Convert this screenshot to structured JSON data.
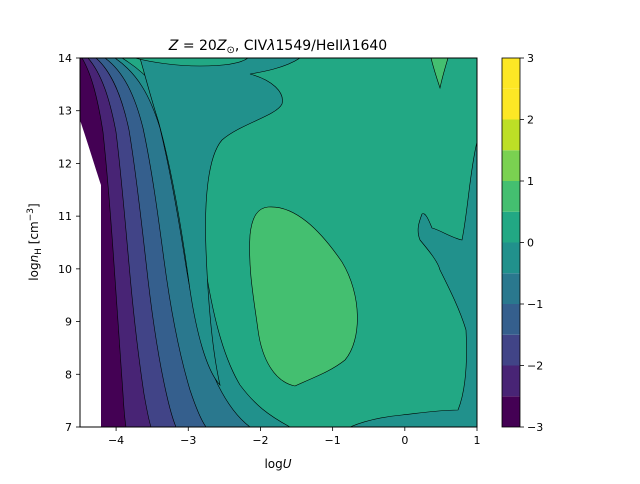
{
  "chart_data": {
    "type": "contourf",
    "title": "Z = 20Z⊙, CIVλ1549/HeIIλ1640",
    "title_parts": {
      "z": "Z",
      "eq": " = 20",
      "zsun": "Z",
      "sun": "⊙",
      "rest": ", CIV",
      "lam1": "λ",
      "n1": "1549/HeII",
      "lam2": "λ",
      "n2": "1640"
    },
    "xlabel": "logU",
    "xlabel_parts": {
      "log": "log",
      "var": "U"
    },
    "ylabel": "logn_H [cm^-3]",
    "ylabel_parts": {
      "log": "log",
      "var": "n",
      "sub": "H",
      "unit": " [cm",
      "sup": "−3",
      "close": "]"
    },
    "xlim": [
      -4.5,
      1
    ],
    "ylim": [
      7,
      14
    ],
    "x_ticks": [
      -4,
      -3,
      -2,
      -1,
      0,
      1
    ],
    "x_tick_labels": [
      "−4",
      "−3",
      "−2",
      "−1",
      "0",
      "1"
    ],
    "y_ticks": [
      7,
      8,
      9,
      10,
      11,
      12,
      13,
      14
    ],
    "y_tick_labels": [
      "7",
      "8",
      "9",
      "10",
      "11",
      "12",
      "13",
      "14"
    ],
    "colorbar": {
      "range": [
        -3,
        3
      ],
      "levels": [
        -3,
        -2.5,
        -2,
        -1.5,
        -1,
        -0.5,
        0,
        0.5,
        1,
        1.5,
        2,
        2.5,
        3
      ],
      "colors": [
        "#440154",
        "#482475",
        "#414487",
        "#355f8d",
        "#2a788e",
        "#21918c",
        "#22a884",
        "#44bf70",
        "#7ad151",
        "#bddf26",
        "#fde725",
        "#fde725"
      ],
      "ticks": [
        -3,
        -2,
        -1,
        0,
        1,
        2,
        3
      ],
      "tick_labels": [
        "−3",
        "−2",
        "−1",
        "0",
        "1",
        "2",
        "3"
      ]
    },
    "regions": [
      {
        "level": [
          0,
          0.5
        ],
        "color": "#22a884",
        "description": "background level across most of grid"
      },
      {
        "level": [
          0.5,
          1
        ],
        "color": "#44bf70",
        "description": "oval island centred near logU=-1.5, logn_H=9.5"
      },
      {
        "level": [
          -0.5,
          0
        ],
        "color": "#21918c",
        "description": "band at logU≈-3, high-density lobe and right-edge strip"
      },
      {
        "level": [
          -3,
          -0.5
        ],
        "color": "#440154",
        "description": "steep gradient toward low logU"
      }
    ],
    "grid": false,
    "legend": "colorbar-right"
  }
}
